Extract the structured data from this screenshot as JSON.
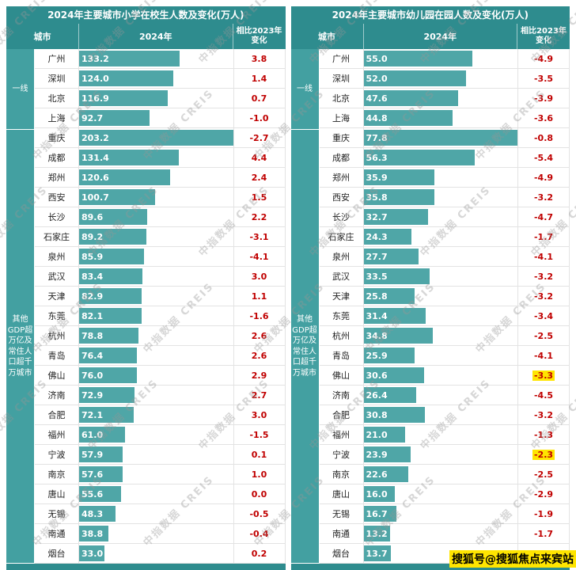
{
  "page": {
    "watermark_text": "中指数据 CREIS",
    "sohu_badge": "搜狐号@搜狐焦点来宾站"
  },
  "colors": {
    "header_bg": "#2E8C8E",
    "group_bg": "#43A0A1",
    "bar_fill": "#4FA6A7",
    "change_text": "#C00000",
    "highlight_bg": "#FFE500"
  },
  "chart_data": [
    {
      "type": "bar",
      "orientation": "horizontal",
      "title": "2024年主要城市小学在校生人数及变化(万人)",
      "columns": {
        "city": "城市",
        "year": "2024年",
        "change_line1": "相比2023年",
        "change_line2": "变化"
      },
      "groups": [
        {
          "label": "一线",
          "count": 4
        },
        {
          "label": "其他GDP超万亿及常住人口超千万城市",
          "count": 22
        }
      ],
      "categories": [
        "广州",
        "深圳",
        "北京",
        "上海",
        "重庆",
        "成都",
        "郑州",
        "西安",
        "长沙",
        "石家庄",
        "泉州",
        "武汉",
        "天津",
        "东莞",
        "杭州",
        "青岛",
        "佛山",
        "济南",
        "合肥",
        "福州",
        "宁波",
        "南京",
        "唐山",
        "无锡",
        "南通",
        "烟台"
      ],
      "series": [
        {
          "name": "2024年",
          "values": [
            133.2,
            124.0,
            116.9,
            92.7,
            203.2,
            131.4,
            120.6,
            100.7,
            89.6,
            89.2,
            85.9,
            83.4,
            82.9,
            82.1,
            78.8,
            76.4,
            76.0,
            72.9,
            72.1,
            61.0,
            57.9,
            57.6,
            55.6,
            48.3,
            38.8,
            33.0
          ]
        },
        {
          "name": "相比2023年变化",
          "values": [
            3.8,
            1.4,
            0.7,
            -1.0,
            -2.7,
            4.4,
            2.4,
            1.5,
            2.2,
            -3.1,
            -4.1,
            3.0,
            1.1,
            -1.6,
            2.6,
            2.6,
            2.9,
            2.7,
            3.0,
            -1.5,
            0.1,
            1.0,
            0.0,
            -0.5,
            -0.4,
            0.2
          ]
        }
      ],
      "bar_max": 203.2,
      "highlight_change_indices": []
    },
    {
      "type": "bar",
      "orientation": "horizontal",
      "title": "2024年主要城市幼儿园在园人数及变化(万人)",
      "columns": {
        "city": "城市",
        "year": "2024年",
        "change_line1": "相比2023年",
        "change_line2": "变化"
      },
      "groups": [
        {
          "label": "一线",
          "count": 4
        },
        {
          "label": "其他GDP超万亿及常住人口超千万城市",
          "count": 22
        }
      ],
      "categories": [
        "广州",
        "深圳",
        "北京",
        "上海",
        "重庆",
        "成都",
        "郑州",
        "西安",
        "长沙",
        "石家庄",
        "泉州",
        "武汉",
        "天津",
        "东莞",
        "杭州",
        "青岛",
        "佛山",
        "济南",
        "合肥",
        "福州",
        "宁波",
        "南京",
        "唐山",
        "无锡",
        "南通",
        "烟台"
      ],
      "series": [
        {
          "name": "2024年",
          "values": [
            55.0,
            52.0,
            47.6,
            44.8,
            77.8,
            56.3,
            35.9,
            35.8,
            32.7,
            24.3,
            27.7,
            33.5,
            25.8,
            31.4,
            34.8,
            25.9,
            30.6,
            26.4,
            30.8,
            21.0,
            23.9,
            22.6,
            16.0,
            16.7,
            13.2,
            13.7
          ]
        },
        {
          "name": "相比2023年变化",
          "values": [
            -4.9,
            -3.5,
            -3.9,
            -3.6,
            -0.8,
            -5.4,
            -4.9,
            -3.2,
            -4.7,
            -1.7,
            -4.1,
            -3.2,
            -3.2,
            -3.4,
            -2.5,
            -4.1,
            -3.3,
            -4.5,
            -3.2,
            -1.3,
            -2.3,
            -2.5,
            -2.9,
            -1.9,
            -1.7,
            null
          ]
        }
      ],
      "bar_max": 77.8,
      "highlight_change_indices": [
        16,
        20
      ]
    }
  ]
}
